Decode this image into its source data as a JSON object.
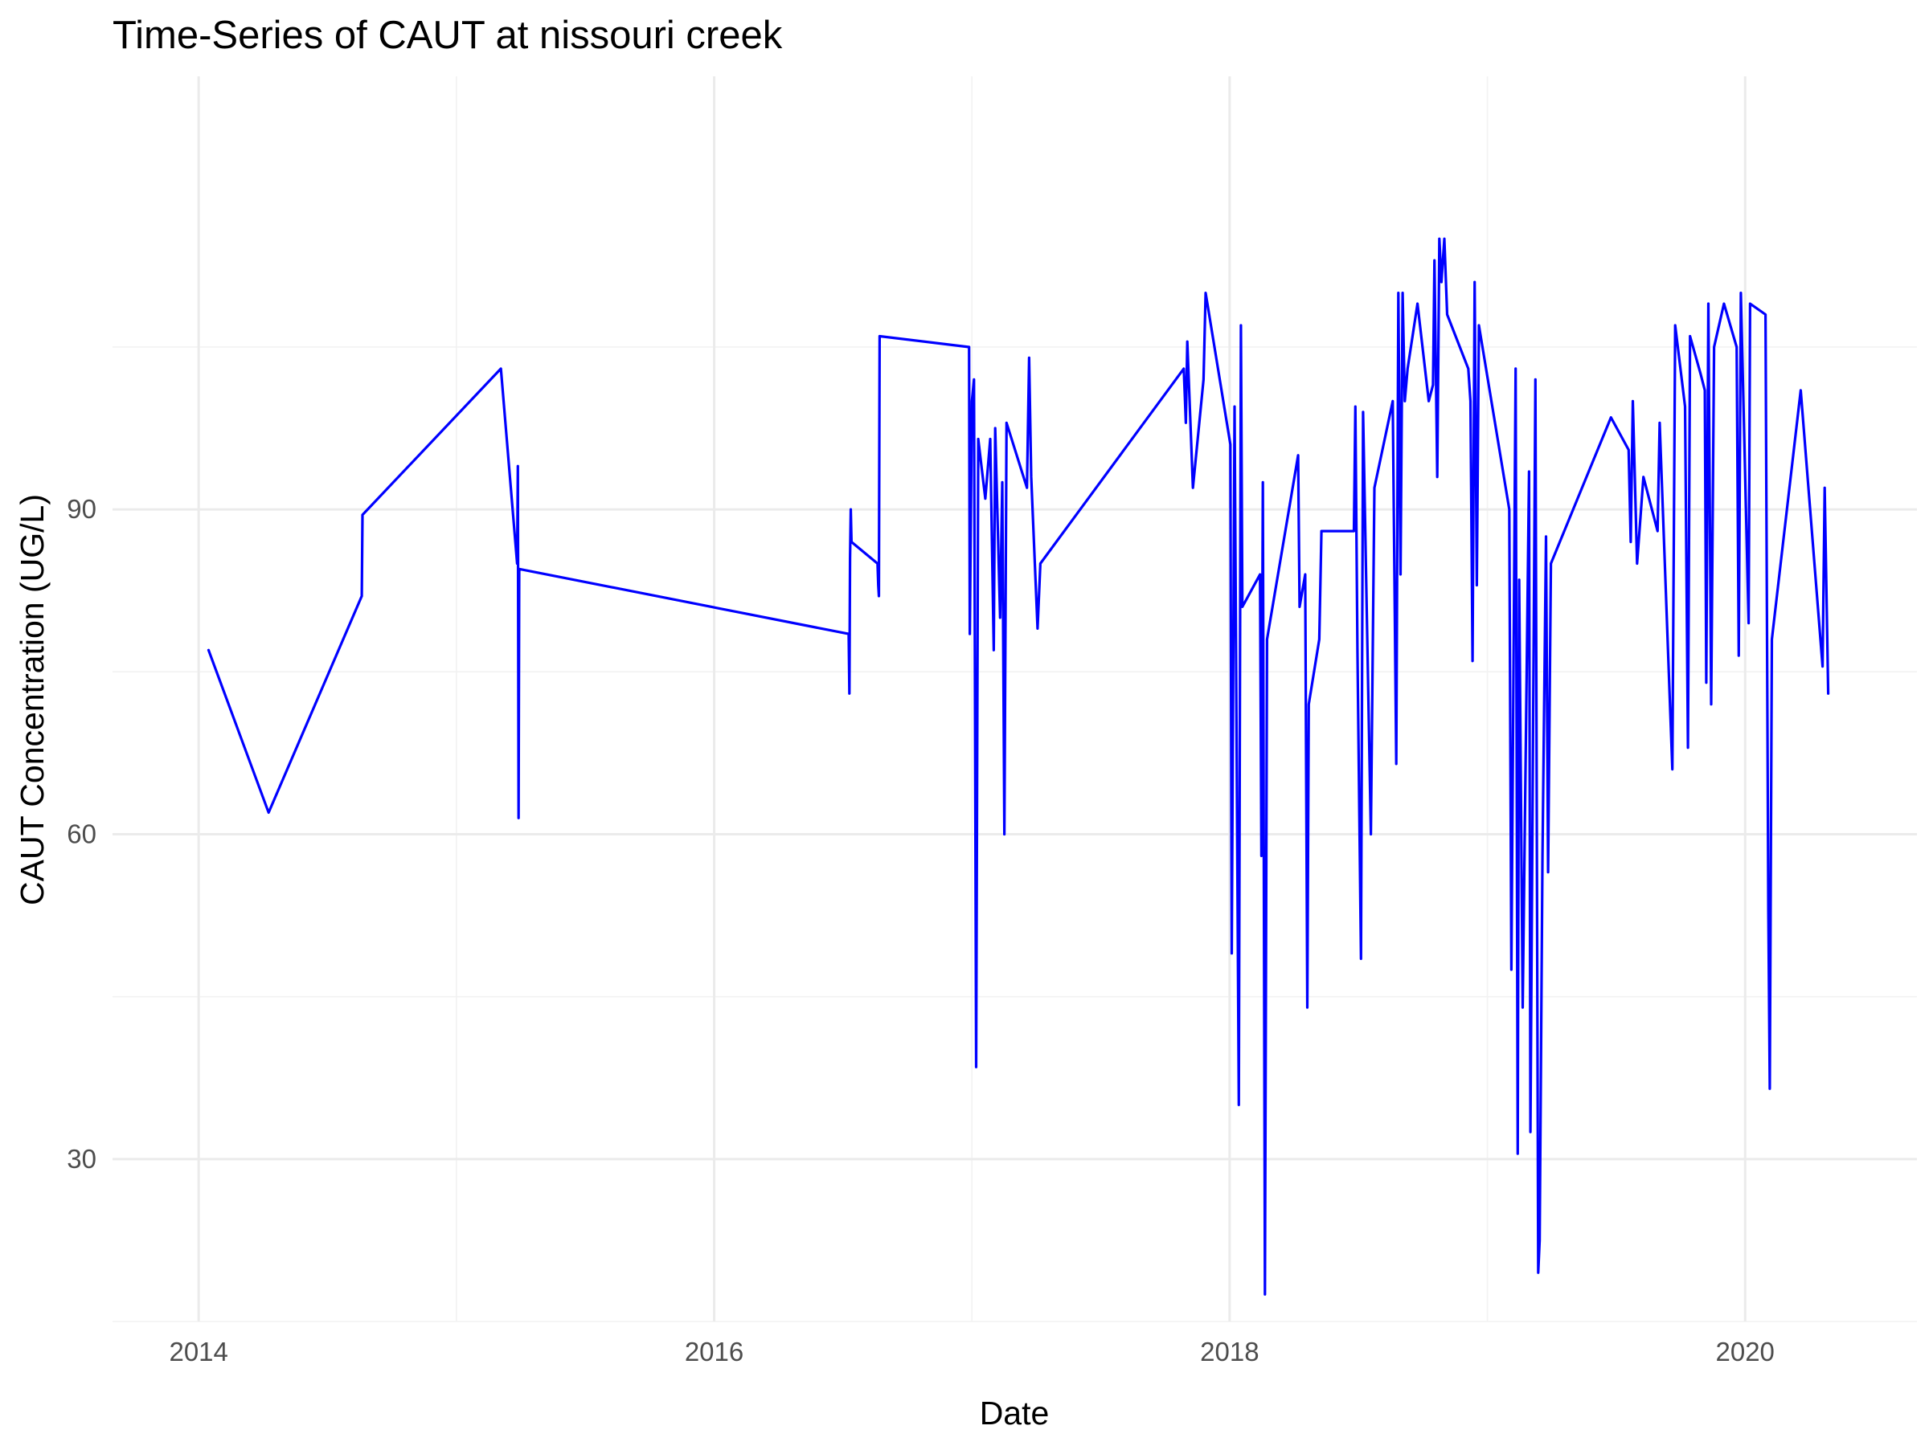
{
  "chart_data": {
    "type": "line",
    "title": "Time-Series of CAUT at nissouri creek",
    "xlabel": "Date",
    "ylabel": "CAUT Concentration (UG/L)",
    "x_ticks": [
      "2014",
      "2016",
      "2018",
      "2020"
    ],
    "y_ticks": [
      30,
      60,
      90
    ],
    "xlim": [
      "2013-09-01",
      "2020-09-01"
    ],
    "ylim": [
      15,
      130
    ],
    "grid": true,
    "legend": "none",
    "colors": {
      "series": "#0000ff",
      "grid_major": "#ebebeb",
      "grid_minor": "#f2f2f2",
      "tick_text": "#4d4d4d"
    },
    "series": [
      {
        "color": "#0000ff",
        "points": [
          [
            "2014-01-15",
            77
          ],
          [
            "2014-04-10",
            62
          ],
          [
            "2014-08-20",
            82
          ],
          [
            "2014-08-21",
            89.5
          ],
          [
            "2015-03-05",
            103
          ],
          [
            "2015-03-28",
            85
          ],
          [
            "2015-03-29",
            94
          ],
          [
            "2015-03-30",
            61.5
          ],
          [
            "2015-03-31",
            84.5
          ],
          [
            "2016-07-10",
            78.5
          ],
          [
            "2016-07-11",
            73
          ],
          [
            "2016-07-12",
            85.5
          ],
          [
            "2016-07-13",
            90
          ],
          [
            "2016-07-14",
            87
          ],
          [
            "2016-08-20",
            85
          ],
          [
            "2016-08-21",
            83
          ],
          [
            "2016-08-22",
            82
          ],
          [
            "2016-08-23",
            106
          ],
          [
            "2016-12-28",
            105
          ],
          [
            "2016-12-29",
            78.5
          ],
          [
            "2017-01-01",
            100
          ],
          [
            "2017-01-04",
            102
          ],
          [
            "2017-01-07",
            38.5
          ],
          [
            "2017-01-10",
            96.5
          ],
          [
            "2017-01-20",
            91
          ],
          [
            "2017-01-27",
            96.5
          ],
          [
            "2017-02-01",
            77
          ],
          [
            "2017-02-03",
            97.5
          ],
          [
            "2017-02-10",
            80
          ],
          [
            "2017-02-13",
            92.5
          ],
          [
            "2017-02-16",
            60
          ],
          [
            "2017-02-19",
            98
          ],
          [
            "2017-03-20",
            92
          ],
          [
            "2017-03-23",
            104
          ],
          [
            "2017-03-26",
            93
          ],
          [
            "2017-04-04",
            79
          ],
          [
            "2017-04-08",
            85
          ],
          [
            "2017-10-28",
            103
          ],
          [
            "2017-10-31",
            98
          ],
          [
            "2017-11-02",
            105.5
          ],
          [
            "2017-11-10",
            92
          ],
          [
            "2017-11-25",
            102
          ],
          [
            "2017-11-28",
            110
          ],
          [
            "2018-01-02",
            96
          ],
          [
            "2018-01-04",
            49
          ],
          [
            "2018-01-08",
            99.5
          ],
          [
            "2018-01-14",
            35
          ],
          [
            "2018-01-17",
            107
          ],
          [
            "2018-01-19",
            81
          ],
          [
            "2018-02-13",
            84
          ],
          [
            "2018-02-15",
            58
          ],
          [
            "2018-02-17",
            92.5
          ],
          [
            "2018-02-20",
            17.5
          ],
          [
            "2018-02-23",
            78
          ],
          [
            "2018-04-08",
            95
          ],
          [
            "2018-04-10",
            81
          ],
          [
            "2018-04-18",
            84
          ],
          [
            "2018-04-21",
            44
          ],
          [
            "2018-04-23",
            72
          ],
          [
            "2018-05-08",
            78
          ],
          [
            "2018-05-11",
            88
          ],
          [
            "2018-06-26",
            88
          ],
          [
            "2018-06-28",
            99.5
          ],
          [
            "2018-07-01",
            77
          ],
          [
            "2018-07-06",
            48.5
          ],
          [
            "2018-07-09",
            99
          ],
          [
            "2018-07-20",
            60
          ],
          [
            "2018-07-25",
            92
          ],
          [
            "2018-08-20",
            100
          ],
          [
            "2018-08-25",
            66.5
          ],
          [
            "2018-08-28",
            110
          ],
          [
            "2018-08-31",
            84
          ],
          [
            "2018-09-03",
            110
          ],
          [
            "2018-09-06",
            100
          ],
          [
            "2018-09-10",
            103
          ],
          [
            "2018-09-24",
            109
          ],
          [
            "2018-10-10",
            100
          ],
          [
            "2018-10-16",
            101.5
          ],
          [
            "2018-10-18",
            113
          ],
          [
            "2018-10-22",
            93
          ],
          [
            "2018-10-25",
            115
          ],
          [
            "2018-10-28",
            111
          ],
          [
            "2018-11-01",
            115
          ],
          [
            "2018-11-05",
            108
          ],
          [
            "2018-12-05",
            103
          ],
          [
            "2018-12-08",
            100
          ],
          [
            "2018-12-11",
            76
          ],
          [
            "2018-12-14",
            111
          ],
          [
            "2018-12-17",
            83
          ],
          [
            "2018-12-20",
            107
          ],
          [
            "2019-02-01",
            90
          ],
          [
            "2019-02-04",
            47.5
          ],
          [
            "2019-02-10",
            103
          ],
          [
            "2019-02-13",
            30.5
          ],
          [
            "2019-02-15",
            83.5
          ],
          [
            "2019-02-20",
            44
          ],
          [
            "2019-03-01",
            93.5
          ],
          [
            "2019-03-03",
            32.5
          ],
          [
            "2019-03-10",
            102
          ],
          [
            "2019-03-14",
            19.5
          ],
          [
            "2019-03-16",
            22.5
          ],
          [
            "2019-03-20",
            58
          ],
          [
            "2019-03-25",
            87.5
          ],
          [
            "2019-03-28",
            56.5
          ],
          [
            "2019-04-01",
            85
          ],
          [
            "2019-06-25",
            98.5
          ],
          [
            "2019-07-20",
            95.5
          ],
          [
            "2019-07-23",
            87
          ],
          [
            "2019-07-26",
            100
          ],
          [
            "2019-08-01",
            85
          ],
          [
            "2019-08-10",
            93
          ],
          [
            "2019-08-30",
            88
          ],
          [
            "2019-09-02",
            98
          ],
          [
            "2019-09-20",
            66
          ],
          [
            "2019-09-24",
            107
          ],
          [
            "2019-10-08",
            99.5
          ],
          [
            "2019-10-12",
            68
          ],
          [
            "2019-10-15",
            106
          ],
          [
            "2019-10-30",
            102.5
          ],
          [
            "2019-11-05",
            101
          ],
          [
            "2019-11-07",
            74
          ],
          [
            "2019-11-10",
            109
          ],
          [
            "2019-11-14",
            72
          ],
          [
            "2019-11-18",
            105
          ],
          [
            "2019-12-02",
            109
          ],
          [
            "2019-12-20",
            105
          ],
          [
            "2019-12-23",
            76.5
          ],
          [
            "2019-12-26",
            110
          ],
          [
            "2020-01-06",
            79.5
          ],
          [
            "2020-01-08",
            109
          ],
          [
            "2020-01-30",
            108
          ],
          [
            "2020-02-03",
            53
          ],
          [
            "2020-02-05",
            36.5
          ],
          [
            "2020-02-08",
            78
          ],
          [
            "2020-03-20",
            101
          ],
          [
            "2020-04-20",
            75.5
          ],
          [
            "2020-04-23",
            92
          ],
          [
            "2020-04-28",
            73
          ]
        ]
      }
    ]
  }
}
